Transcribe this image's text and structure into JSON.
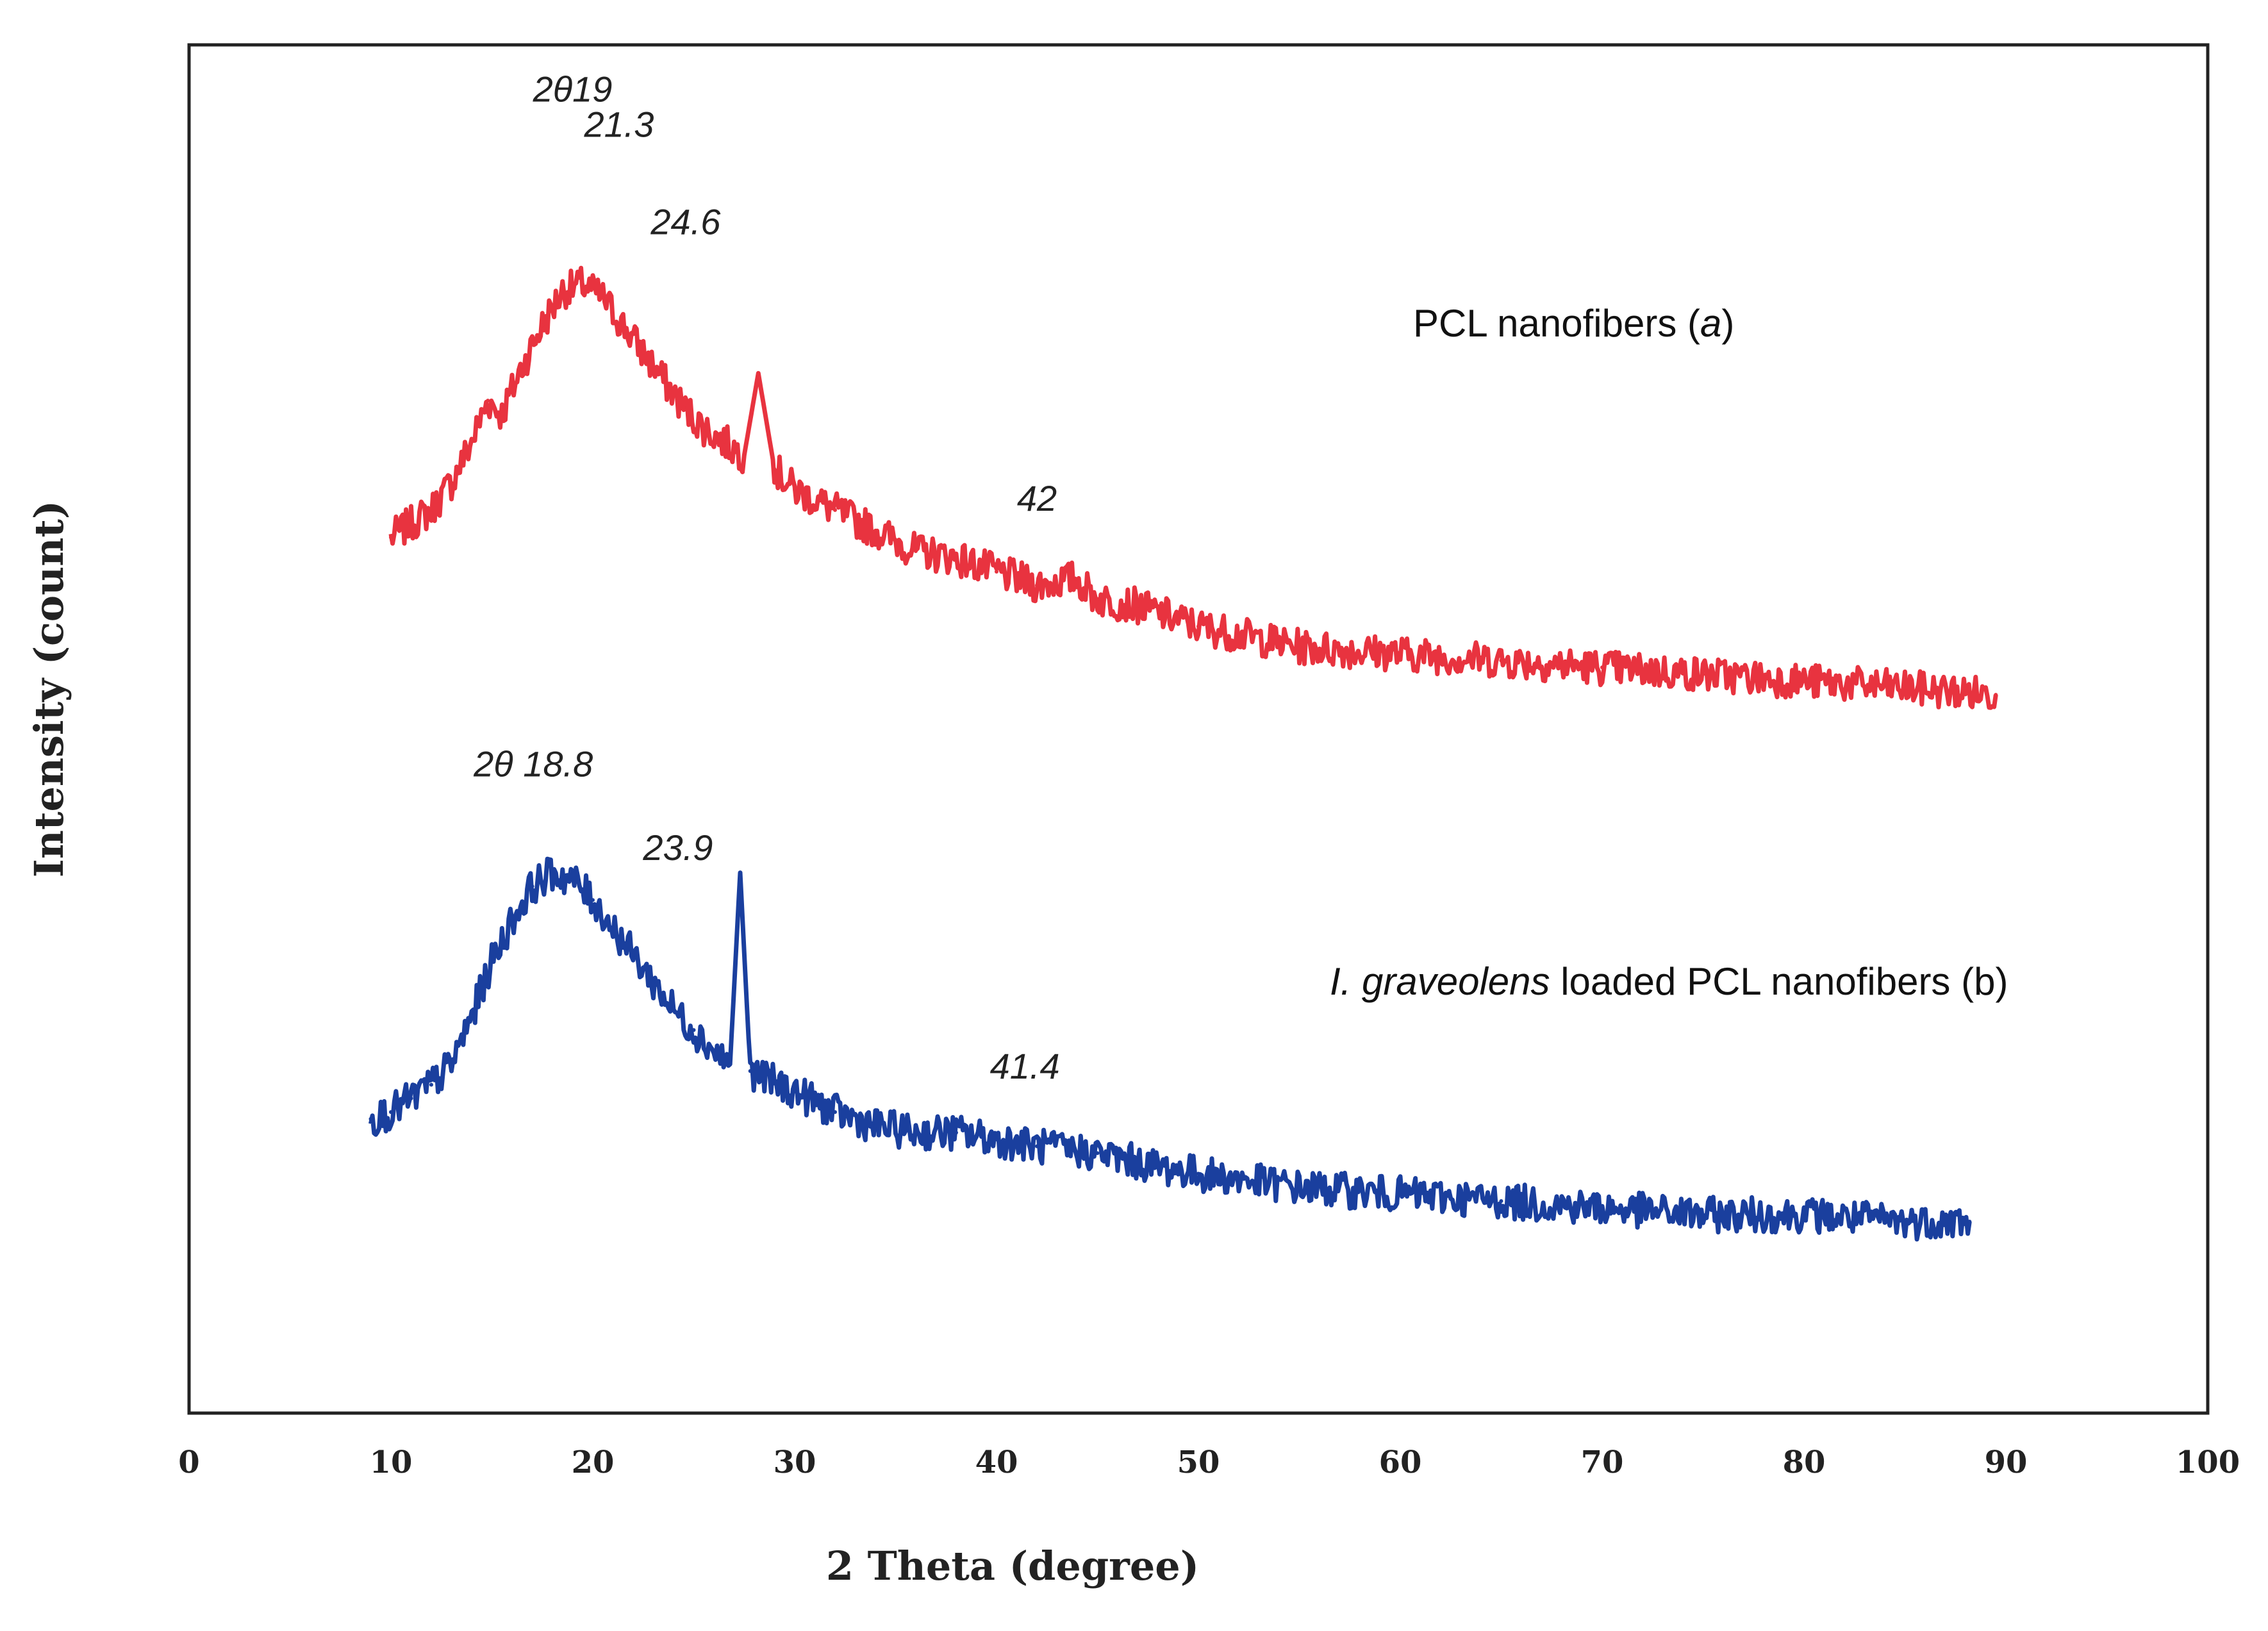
{
  "chart_data": {
    "type": "line",
    "title": "",
    "xlabel": "2 Theta (degree)",
    "ylabel": "Intensity (count)",
    "xlim": [
      0,
      100
    ],
    "ylim": [
      0,
      100
    ],
    "x_ticks": [
      "0",
      "10",
      "20",
      "30",
      "40",
      "50",
      "60",
      "70",
      "80",
      "90",
      "100"
    ],
    "y_ticks": [],
    "grid": false,
    "colors": {
      "series_a": "#e8333f",
      "series_b": "#1a3f9e",
      "axis": "#222222"
    },
    "series": [
      {
        "name": "PCL nanofibers (a)",
        "label_parts": [
          {
            "text": "PCL nanofibers (",
            "style": "normal"
          },
          {
            "text": "a",
            "style": "italic"
          },
          {
            "text": ")",
            "style": "normal"
          }
        ],
        "color": "#e8333f",
        "x": [
          10,
          11,
          12,
          13,
          14,
          14.8,
          15.5,
          16.5,
          17.5,
          18.5,
          19.5,
          20.5,
          21.5,
          22.5,
          23.5,
          24.5,
          25.5,
          26.5,
          27.5,
          28.2,
          29,
          30,
          32,
          34,
          36,
          38,
          40,
          42,
          43.9,
          45,
          47,
          50,
          55,
          60,
          65,
          70,
          75,
          80,
          85,
          89.5
        ],
        "y": [
          64,
          65,
          66,
          68,
          71,
          74,
          73,
          76.5,
          79.5,
          82,
          82.5,
          81.5,
          79.5,
          77.5,
          75.5,
          73.5,
          72,
          71,
          70,
          76,
          69,
          67.5,
          66,
          64.5,
          63,
          62.5,
          61.5,
          60.5,
          61,
          59.5,
          59,
          57.5,
          56,
          55.5,
          55,
          54.5,
          54,
          53.5,
          53,
          52.5
        ],
        "peaks": [
          {
            "label": "2θ19",
            "x": 19
          },
          {
            "label": "21.3",
            "x": 21.3
          },
          {
            "label": "24.6",
            "x": 24.6
          },
          {
            "label": "42",
            "x": 42
          }
        ]
      },
      {
        "name": "I. graveolens loaded PCL nanofibers (b)",
        "label_parts": [
          {
            "text": "I. graveolens",
            "style": "italic"
          },
          {
            "text": " loaded PCL nanofibers (b)",
            "style": "normal"
          }
        ],
        "color": "#1a3f9e",
        "x": [
          9,
          10,
          11,
          12,
          13,
          14,
          15,
          16,
          17,
          18,
          19,
          20,
          21,
          22,
          23,
          24,
          25,
          26,
          26.8,
          27.3,
          27.8,
          28.5,
          30,
          32,
          34,
          36,
          38,
          40,
          42,
          45,
          48,
          50,
          55,
          60,
          65,
          70,
          75,
          80,
          85,
          88.2
        ],
        "y": [
          21.5,
          22,
          23,
          24,
          25.5,
          29,
          33,
          36,
          38.5,
          39.5,
          39,
          37.5,
          35.5,
          33.5,
          31.5,
          29.5,
          28,
          26.5,
          25.5,
          39.5,
          25,
          24.5,
          23.5,
          22,
          21,
          20.5,
          20.5,
          20,
          19.5,
          19,
          18,
          17.5,
          16.5,
          16,
          15.5,
          15,
          14.5,
          14.5,
          14,
          14
        ],
        "peaks": [
          {
            "label": "2θ 18.8",
            "x": 18.8
          },
          {
            "label": "23.9",
            "x": 23.9
          },
          {
            "label": "41.4",
            "x": 41.4
          }
        ]
      }
    ]
  }
}
